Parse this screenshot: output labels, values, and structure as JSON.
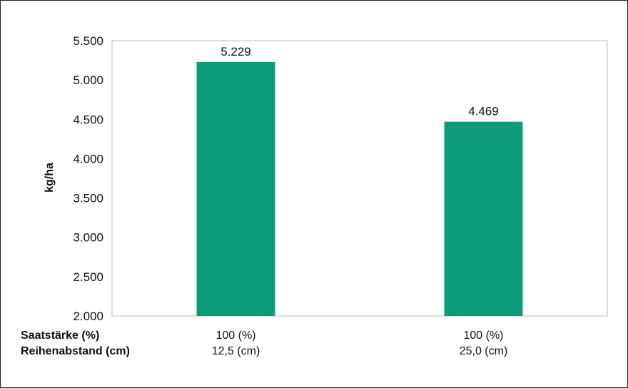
{
  "chart_data": {
    "type": "bar",
    "categories": [
      {
        "line1": "100 (%)",
        "line2": "12,5 (cm)"
      },
      {
        "line1": "100 (%)",
        "line2": "25,0 (cm)"
      }
    ],
    "values": [
      5229,
      4469
    ],
    "value_labels": [
      "5.229",
      "4.469"
    ],
    "ylabel": "kg/ha",
    "ylim": [
      2000,
      5500
    ],
    "yticks": [
      2000,
      2500,
      3000,
      3500,
      4000,
      4500,
      5000,
      5500
    ],
    "ytick_labels": [
      "2.000",
      "2.500",
      "3.000",
      "3.500",
      "4.000",
      "4.500",
      "5.000",
      "5.500"
    ],
    "row_labels": [
      "Saatstärke (%)",
      "Reihenabstand (cm)"
    ],
    "bar_color": "#0c9c78",
    "grid": false
  }
}
